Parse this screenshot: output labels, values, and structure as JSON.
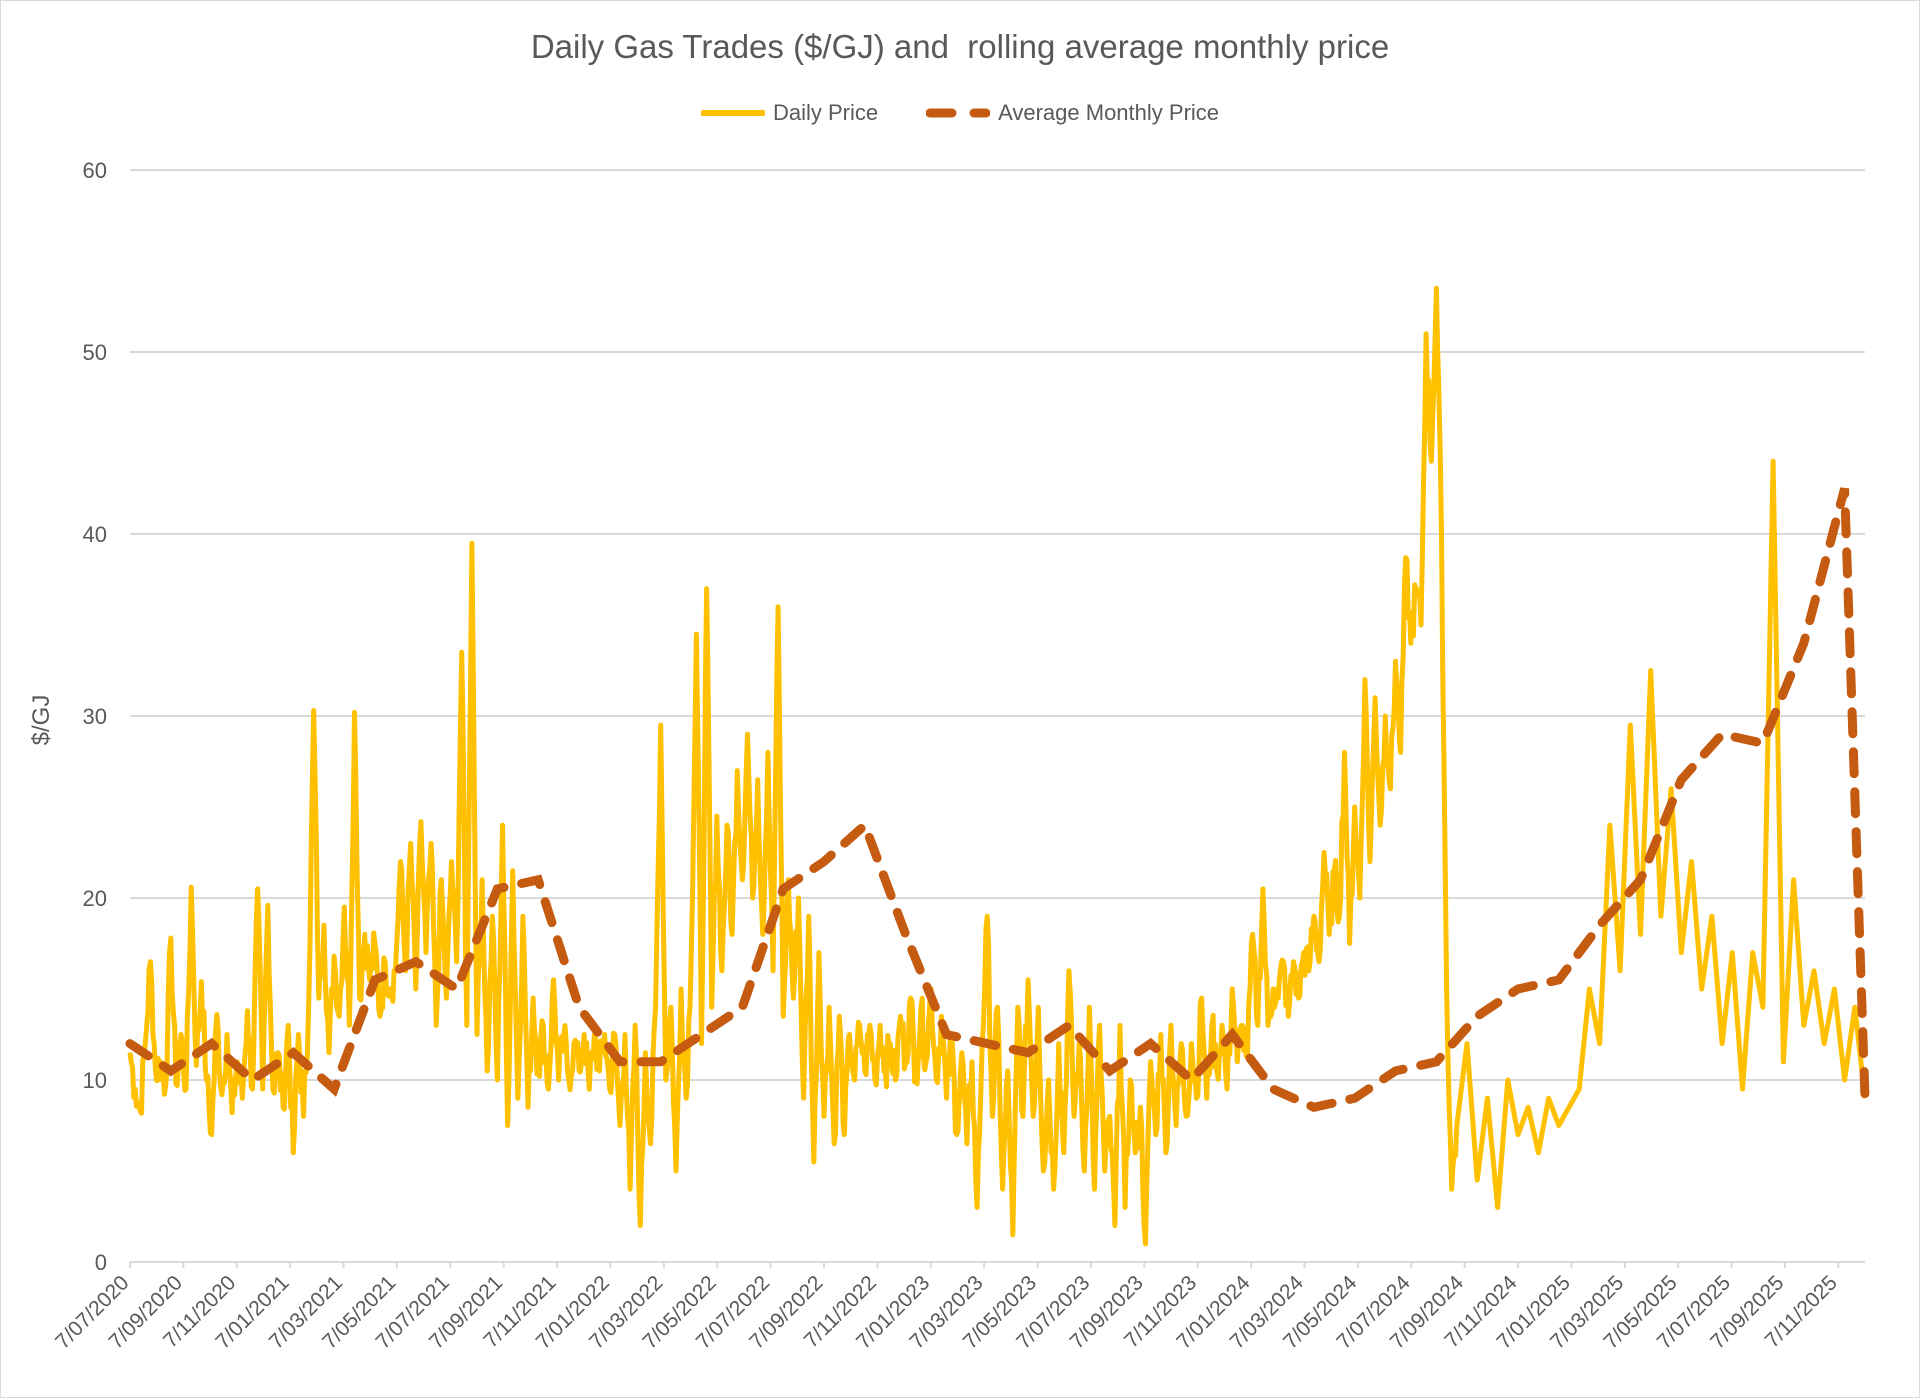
{
  "colors": {
    "daily": "#FFC000",
    "monthly": "#C55A11",
    "grid": "#d9d9d9",
    "text": "#595959"
  },
  "chart_data": {
    "type": "line",
    "title": "Daily Gas Trades ($/GJ) and  rolling average monthly price",
    "xlabel": "",
    "ylabel": "$/GJ",
    "ylim": [
      0,
      60
    ],
    "yticks": [
      0,
      10,
      20,
      30,
      40,
      50,
      60
    ],
    "grid": true,
    "legend_position": "top-center",
    "x_tick_labels": [
      "7/07/2020",
      "7/09/2020",
      "7/11/2020",
      "7/01/2021",
      "7/03/2021",
      "7/05/2021",
      "7/07/2021",
      "7/09/2021",
      "7/11/2021",
      "7/01/2022",
      "7/03/2022",
      "7/05/2022",
      "7/07/2022",
      "7/09/2022",
      "7/11/2022",
      "7/01/2023",
      "7/03/2023",
      "7/05/2023",
      "7/07/2023",
      "7/09/2023",
      "7/11/2023",
      "7/01/2024",
      "7/03/2024",
      "7/05/2024",
      "7/07/2024",
      "7/09/2024",
      "7/11/2024",
      "7/01/2025",
      "7/03/2025",
      "7/05/2025",
      "7/07/2025",
      "7/09/2025",
      "7/11/2025"
    ],
    "x_units": "months since July 2020",
    "x_range": [
      0,
      65
    ],
    "series": [
      {
        "name": "Daily Price",
        "style": "solid",
        "points": [
          [
            0,
            11.5
          ],
          [
            0.25,
            9.5
          ],
          [
            0.5,
            8.3
          ],
          [
            0.75,
            12
          ],
          [
            1,
            16.5
          ],
          [
            1.25,
            10.5
          ],
          [
            1.5,
            11
          ],
          [
            1.75,
            9.7
          ],
          [
            2,
            17.8
          ],
          [
            2.25,
            9.8
          ],
          [
            2.5,
            12.5
          ],
          [
            2.75,
            9.5
          ],
          [
            3,
            20.6
          ],
          [
            3.25,
            10.8
          ],
          [
            3.5,
            15.4
          ],
          [
            3.75,
            10
          ],
          [
            4,
            7
          ],
          [
            4.25,
            13.6
          ],
          [
            4.5,
            9.2
          ],
          [
            4.75,
            12.5
          ],
          [
            5,
            8.2
          ],
          [
            5.25,
            11
          ],
          [
            5.5,
            9
          ],
          [
            5.75,
            13.8
          ],
          [
            6,
            9.5
          ],
          [
            6.25,
            20.5
          ],
          [
            6.5,
            9.5
          ],
          [
            6.75,
            19.6
          ],
          [
            7,
            9.5
          ],
          [
            7.25,
            11.5
          ],
          [
            7.5,
            8.5
          ],
          [
            7.75,
            13
          ],
          [
            8,
            6
          ],
          [
            8.25,
            12.5
          ],
          [
            8.5,
            8
          ],
          [
            8.75,
            14
          ],
          [
            9,
            30.3
          ],
          [
            9.25,
            14.5
          ],
          [
            9.5,
            18.5
          ],
          [
            9.75,
            11.5
          ],
          [
            10,
            16.8
          ],
          [
            10.25,
            13.5
          ],
          [
            10.5,
            19.5
          ],
          [
            10.75,
            13
          ],
          [
            11,
            30.2
          ],
          [
            11.25,
            14.5
          ],
          [
            11.5,
            18
          ],
          [
            11.75,
            15.5
          ],
          [
            12,
            17.5
          ],
          [
            12.25,
            13.5
          ],
          [
            12.5,
            16.5
          ],
          [
            12.75,
            15
          ],
          [
            13,
            16
          ],
          [
            13.25,
            22
          ],
          [
            13.5,
            16
          ],
          [
            13.75,
            23
          ],
          [
            14,
            15
          ],
          [
            14.25,
            24.2
          ],
          [
            14.5,
            17
          ],
          [
            14.75,
            23
          ],
          [
            15,
            13
          ],
          [
            15.25,
            21
          ],
          [
            15.5,
            14.5
          ],
          [
            15.75,
            22
          ],
          [
            16,
            16.5
          ],
          [
            16.25,
            33.5
          ],
          [
            16.5,
            13
          ],
          [
            16.75,
            39.5
          ],
          [
            17,
            12.5
          ],
          [
            17.25,
            21
          ],
          [
            17.5,
            10.5
          ],
          [
            17.75,
            19
          ],
          [
            18,
            10
          ],
          [
            18.25,
            24
          ],
          [
            18.5,
            7.5
          ],
          [
            18.75,
            21.5
          ],
          [
            19,
            9
          ],
          [
            19.25,
            19
          ],
          [
            19.5,
            8.5
          ],
          [
            19.75,
            14.5
          ],
          [
            20,
            10.5
          ],
          [
            20.25,
            13
          ],
          [
            20.5,
            9.5
          ],
          [
            20.75,
            15.5
          ],
          [
            21,
            10
          ],
          [
            21.25,
            12.5
          ],
          [
            21.5,
            10
          ],
          [
            21.75,
            12
          ],
          [
            22,
            10.5
          ],
          [
            22.25,
            12.5
          ],
          [
            22.5,
            9.5
          ],
          [
            22.75,
            12.5
          ],
          [
            23,
            10.5
          ],
          [
            23.25,
            12.5
          ],
          [
            23.5,
            9.5
          ],
          [
            23.75,
            12.5
          ],
          [
            24,
            7.5
          ],
          [
            24.25,
            12.5
          ],
          [
            24.5,
            4
          ],
          [
            24.75,
            13
          ],
          [
            25,
            2
          ],
          [
            25.25,
            11.5
          ],
          [
            25.5,
            6.5
          ],
          [
            25.75,
            14
          ],
          [
            26,
            29.5
          ],
          [
            26.25,
            10
          ],
          [
            26.5,
            14
          ],
          [
            26.75,
            5
          ],
          [
            27,
            15
          ],
          [
            27.25,
            9
          ],
          [
            27.5,
            17
          ],
          [
            27.75,
            34.5
          ],
          [
            28,
            12
          ],
          [
            28.25,
            37
          ],
          [
            28.5,
            14
          ],
          [
            28.75,
            24.5
          ],
          [
            29,
            16
          ],
          [
            29.25,
            24
          ],
          [
            29.5,
            18
          ],
          [
            29.75,
            27
          ],
          [
            30,
            21
          ],
          [
            30.25,
            29
          ],
          [
            30.5,
            20
          ],
          [
            30.75,
            26.5
          ],
          [
            31,
            18
          ],
          [
            31.25,
            28
          ],
          [
            31.5,
            16
          ],
          [
            31.75,
            36
          ],
          [
            32,
            13.5
          ],
          [
            32.25,
            21
          ],
          [
            32.5,
            14.5
          ],
          [
            32.75,
            20
          ],
          [
            33,
            9
          ],
          [
            33.25,
            19
          ],
          [
            33.5,
            5.5
          ],
          [
            33.75,
            17
          ],
          [
            34,
            8
          ],
          [
            34.25,
            14
          ],
          [
            34.5,
            6.5
          ],
          [
            34.75,
            13.5
          ],
          [
            35,
            7
          ],
          [
            35.25,
            12.5
          ],
          [
            35.5,
            10
          ],
          [
            35.75,
            13
          ],
          [
            36,
            10.5
          ],
          [
            36.25,
            13
          ],
          [
            36.5,
            10
          ],
          [
            36.75,
            13
          ],
          [
            37,
            10.5
          ],
          [
            37.25,
            12
          ],
          [
            37.5,
            10
          ],
          [
            37.75,
            13.5
          ],
          [
            38,
            11
          ],
          [
            38.25,
            14.5
          ],
          [
            38.5,
            10
          ],
          [
            38.75,
            14
          ],
          [
            39,
            11
          ],
          [
            39.25,
            15
          ],
          [
            39.5,
            10
          ],
          [
            39.75,
            13.5
          ],
          [
            40,
            9
          ],
          [
            40.25,
            12.5
          ],
          [
            40.5,
            7
          ],
          [
            40.75,
            11.5
          ],
          [
            41,
            6.5
          ],
          [
            41.25,
            11
          ],
          [
            41.5,
            3
          ],
          [
            41.75,
            12
          ],
          [
            42,
            19
          ],
          [
            42.25,
            8
          ],
          [
            42.5,
            14
          ],
          [
            42.75,
            4
          ],
          [
            43,
            10.5
          ],
          [
            43.25,
            1.5
          ],
          [
            43.5,
            14
          ],
          [
            43.75,
            8
          ],
          [
            44,
            15.5
          ],
          [
            44.25,
            8
          ],
          [
            44.5,
            14
          ],
          [
            44.75,
            5
          ],
          [
            45,
            10
          ],
          [
            45.25,
            4
          ],
          [
            45.5,
            12
          ],
          [
            45.75,
            6
          ],
          [
            46,
            16
          ],
          [
            46.25,
            8
          ],
          [
            46.5,
            12
          ],
          [
            46.75,
            5
          ],
          [
            47,
            14
          ],
          [
            47.25,
            4
          ],
          [
            47.5,
            13
          ],
          [
            47.75,
            5
          ],
          [
            48,
            8
          ],
          [
            48.25,
            2
          ],
          [
            48.5,
            13
          ],
          [
            48.75,
            3
          ],
          [
            49,
            10
          ],
          [
            49.25,
            6
          ],
          [
            49.5,
            8.5
          ],
          [
            49.75,
            1
          ],
          [
            50,
            11
          ],
          [
            50.25,
            7
          ],
          [
            50.5,
            12.5
          ],
          [
            50.75,
            6
          ],
          [
            51,
            13
          ],
          [
            51.25,
            7.5
          ],
          [
            51.5,
            12
          ],
          [
            51.75,
            8
          ],
          [
            52,
            12
          ],
          [
            52.25,
            9
          ],
          [
            52.5,
            14.5
          ],
          [
            52.75,
            9
          ],
          [
            53,
            13
          ],
          [
            53.25,
            10.5
          ],
          [
            53.5,
            13
          ],
          [
            53.75,
            9.5
          ],
          [
            54,
            15
          ],
          [
            54.25,
            11
          ],
          [
            54.5,
            13
          ],
          [
            54.75,
            11.5
          ],
          [
            55,
            18
          ],
          [
            55.25,
            13
          ],
          [
            55.5,
            20.5
          ],
          [
            55.75,
            13
          ],
          [
            56,
            15
          ],
          [
            56.25,
            14.5
          ],
          [
            56.5,
            16.5
          ],
          [
            56.75,
            13.5
          ],
          [
            57,
            16.5
          ],
          [
            57.25,
            14.5
          ],
          [
            57.5,
            17
          ],
          [
            57.75,
            16
          ],
          [
            58,
            19
          ],
          [
            58.25,
            16.5
          ],
          [
            58.5,
            22.5
          ],
          [
            58.75,
            18
          ],
          [
            59,
            21.5
          ],
          [
            59.25,
            19
          ],
          [
            59.5,
            28
          ],
          [
            59.75,
            17.5
          ],
          [
            60,
            25
          ],
          [
            60.25,
            20
          ],
          [
            60.5,
            32
          ],
          [
            60.75,
            22
          ],
          [
            61,
            31
          ],
          [
            61.25,
            24
          ],
          [
            61.5,
            30
          ],
          [
            61.75,
            26
          ],
          [
            62,
            33
          ],
          [
            62.25,
            28
          ],
          [
            62.5,
            38.7
          ],
          [
            62.75,
            34
          ],
          [
            63,
            37
          ],
          [
            63.25,
            35
          ],
          [
            63.5,
            51
          ],
          [
            63.75,
            44
          ],
          [
            64,
            53.5
          ],
          [
            64.25,
            40
          ],
          [
            64.5,
            15
          ],
          [
            64.75,
            4
          ],
          [
            65,
            7.5
          ]
        ],
        "note": "x-axis spans Jul 2020 - Dec 2025; rendered with mapped index"
      }
    ]
  }
}
